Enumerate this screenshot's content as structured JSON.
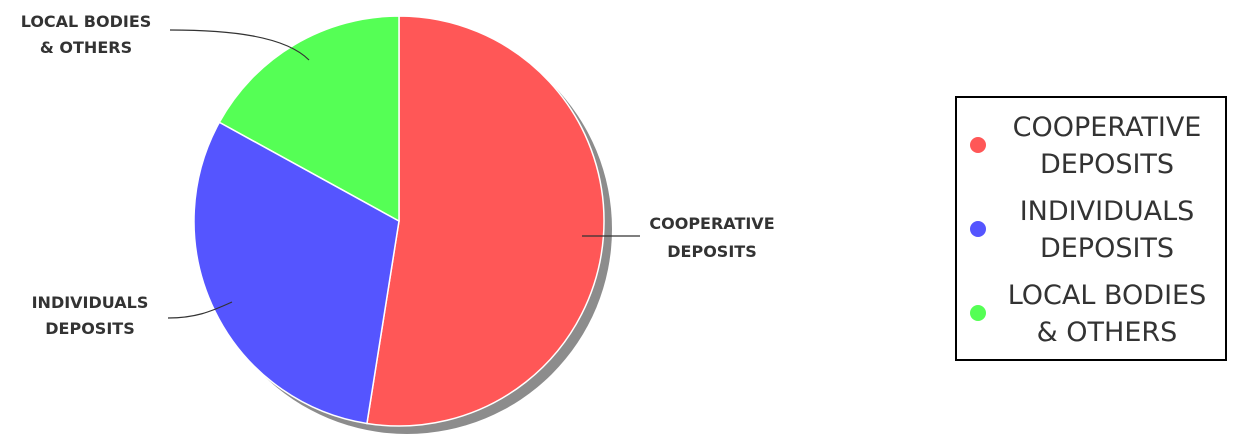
{
  "chart_data": {
    "type": "pie",
    "title": "",
    "slices": [
      {
        "label": "COOPERATIVE DEPOSITS",
        "label_lines": [
          "COOPERATIVE",
          "DEPOSITS"
        ],
        "legend_lines": [
          "COOPERATIVE",
          "DEPOSITS"
        ],
        "value": 52.5,
        "color": "#ff5757"
      },
      {
        "label": "INDIVIDUALS DEPOSITS",
        "label_lines": [
          "INDIVIDUALS",
          "DEPOSITS"
        ],
        "legend_lines": [
          "INDIVIDUALS",
          "DEPOSITS"
        ],
        "value": 30.5,
        "color": "#5555ff"
      },
      {
        "label": "LOCAL BODIES & OTHERS",
        "label_lines": [
          "LOCAL BODIES",
          "& OTHERS"
        ],
        "legend_lines": [
          "LOCAL BODIES",
          "& OTHERS"
        ],
        "value": 17.0,
        "color": "#55ff55"
      }
    ],
    "legend": "right"
  }
}
